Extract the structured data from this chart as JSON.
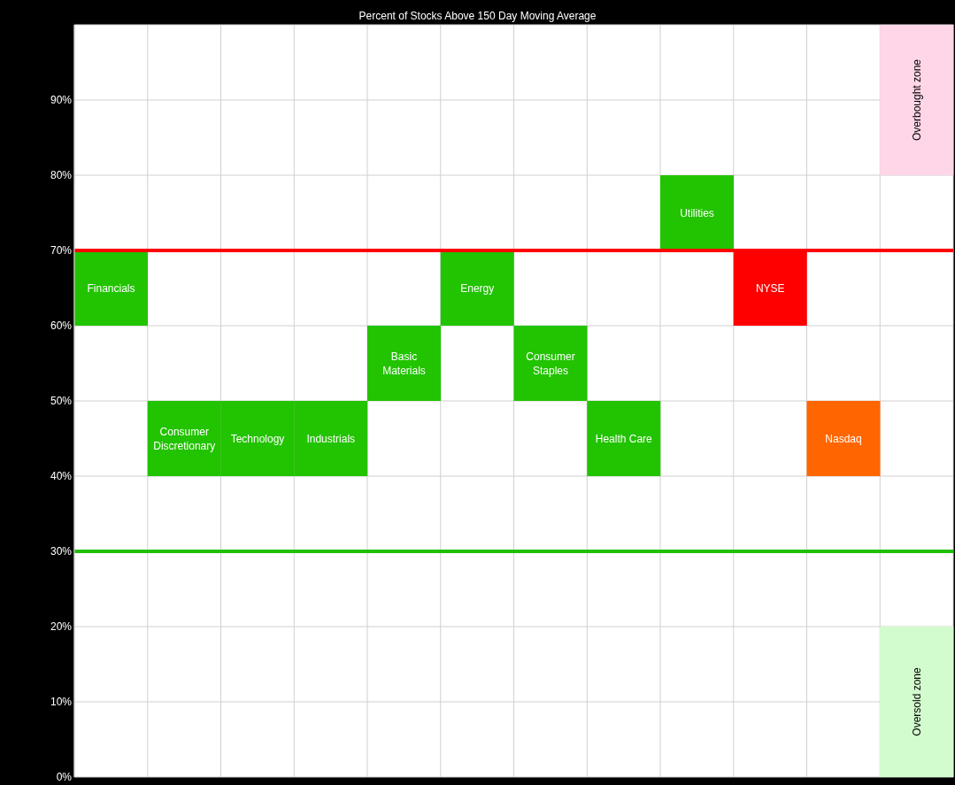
{
  "chart_data": {
    "type": "bar",
    "title": "Percent of Stocks Above 150 Day Moving Average",
    "categories": [
      null,
      null,
      null,
      null,
      null,
      null,
      null,
      null,
      null,
      null,
      null,
      null
    ],
    "series": [
      {
        "values": [
          10,
          10,
          10,
          10,
          10,
          10,
          10,
          10,
          10,
          10,
          10,
          null
        ],
        "base": [
          60,
          40,
          40,
          40,
          50,
          60,
          50,
          40,
          70,
          60,
          40,
          null
        ],
        "colors": [
          "#22c300",
          "#22c300",
          "#22c300",
          "#22c300",
          "#22c300",
          "#22c300",
          "#22c300",
          "#22c300",
          "#22c300",
          "#ff0000",
          "#ff6600",
          null
        ],
        "value_labels": [
          "Financials",
          "Consumer Discretionary",
          "Technology",
          "Industrials",
          "Basic Materials",
          "Energy",
          "Consumer Staples",
          "Health Care",
          "Utilities",
          "NYSE",
          "Nasdaq",
          null
        ]
      },
      {
        "values": [
          null,
          null,
          null,
          null,
          null,
          null,
          null,
          null,
          null,
          null,
          null,
          20
        ],
        "base": [
          null,
          null,
          null,
          null,
          null,
          null,
          null,
          null,
          null,
          null,
          null,
          80
        ],
        "color": "#ffd6e7",
        "value_labels": [
          null,
          null,
          null,
          null,
          null,
          null,
          null,
          null,
          null,
          null,
          null,
          "Overbought zone"
        ]
      },
      {
        "values": [
          null,
          null,
          null,
          null,
          null,
          null,
          null,
          null,
          null,
          null,
          null,
          20
        ],
        "base": [
          null,
          null,
          null,
          null,
          null,
          null,
          null,
          null,
          null,
          null,
          null,
          0
        ],
        "color": "#d3fcce",
        "value_labels": [
          null,
          null,
          null,
          null,
          null,
          null,
          null,
          null,
          null,
          null,
          null,
          "Oversold zone"
        ]
      }
    ],
    "ylim": [
      0,
      100
    ],
    "yticks": [
      {
        "value": 0,
        "label": "0%"
      },
      {
        "value": 10,
        "label": "10%"
      },
      {
        "value": 20,
        "label": "20%"
      },
      {
        "value": 30,
        "label": "30%"
      },
      {
        "value": 40,
        "label": "40%"
      },
      {
        "value": 50,
        "label": "50%"
      },
      {
        "value": 60,
        "label": "60%"
      },
      {
        "value": 70,
        "label": "70%"
      },
      {
        "value": 80,
        "label": "80%"
      },
      {
        "value": 90,
        "label": "90%"
      }
    ],
    "grid": true,
    "tick_labels": "y",
    "ref_lines": [
      {
        "axis": "y",
        "value": 70,
        "color": "#ff0000"
      },
      {
        "axis": "y",
        "value": 30,
        "color": "#20c000"
      }
    ]
  }
}
